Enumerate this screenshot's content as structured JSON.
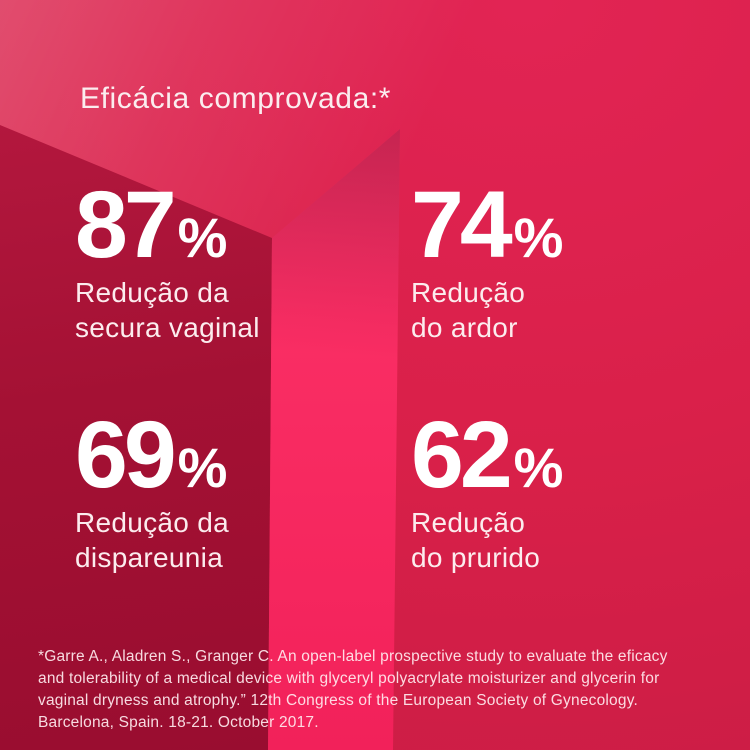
{
  "title": "Eficácia comprovada:*",
  "stats": [
    {
      "value": "87",
      "unit": "%",
      "lines": [
        "Redução da",
        "secura vaginal"
      ]
    },
    {
      "value": "74",
      "unit": "%",
      "lines": [
        "Redução",
        "do ardor"
      ]
    },
    {
      "value": "69",
      "unit": "%",
      "lines": [
        "Redução da",
        "dispareunia"
      ]
    },
    {
      "value": "62",
      "unit": "%",
      "lines": [
        "Redução",
        "do prurido"
      ]
    }
  ],
  "footnote": {
    "lines": [
      "*Garre A., Aladren S., Granger C. An open-label prospective study to evaluate the eficacy",
      "and tolerability of a medical device with glyceryl polyacrylate moisturizer and glycerin for",
      "vaginal dryness and atrophy.” 12th Congress of the European Society of Gynecology.",
      "Barcelona, Spain. 18-21. October 2017."
    ]
  },
  "colors": {
    "background": "#d92049",
    "box_front_face": "#a41134",
    "box_side_face": "#fa2e64",
    "text": "#ffffff"
  },
  "chart_data": {
    "type": "table",
    "title": "Eficácia comprovada:*",
    "categories": [
      "Redução da secura vaginal",
      "Redução do ardor",
      "Redução da dispareunia",
      "Redução do prurido"
    ],
    "values": [
      87,
      74,
      69,
      62
    ],
    "unit": "%",
    "legend_position": "none",
    "notes": "Four efficacy percentages arranged in a 2x2 grid over a 3D red box scene"
  }
}
